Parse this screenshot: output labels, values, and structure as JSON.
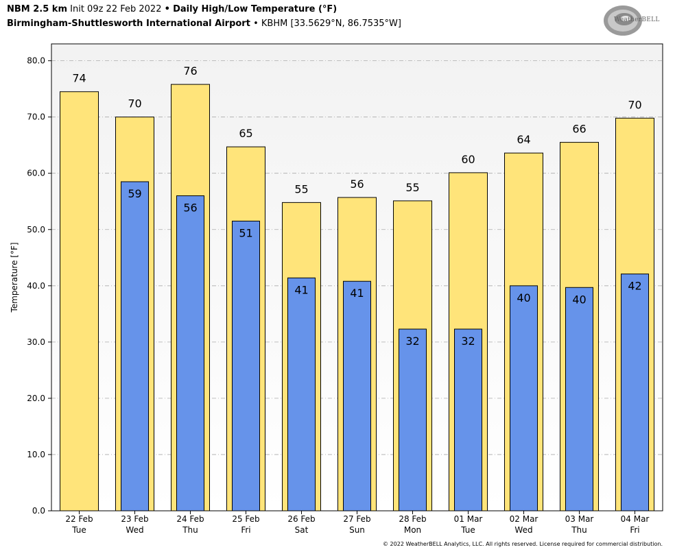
{
  "header": {
    "model": "NBM 2.5 km",
    "init": "Init 09z 22 Feb 2022",
    "sep": "•",
    "product": "Daily High/Low Temperature (°F)",
    "station_name": "Birmingham-Shuttlesworth International Airport",
    "station_info": "KBHM [33.5629°N, 86.7535°W]"
  },
  "logo": {
    "text": "WeatherBELL",
    "icon": "weatherbell-swirl-logo"
  },
  "copyright": "© 2022 WeatherBELL Analytics, LLC. All rights reserved. License required for commercial distribution.",
  "colors": {
    "high": "#FFE47A",
    "low": "#6693EA",
    "plot_bg_top": "#F2F2F2",
    "plot_bg_bottom": "#FFFFFF",
    "grid": "#AAAAAA"
  },
  "chart_data": {
    "type": "bar",
    "title": "Daily High/Low Temperature (°F)",
    "ylabel": "Temperature [°F]",
    "xlabel": "",
    "ylim": [
      0,
      83
    ],
    "yticks": [
      "0.0",
      "10.0",
      "20.0",
      "30.0",
      "40.0",
      "50.0",
      "60.0",
      "70.0",
      "80.0"
    ],
    "ytick_values": [
      0,
      10,
      20,
      30,
      40,
      50,
      60,
      70,
      80
    ],
    "grid": "horizontal dash-dot",
    "categories": [
      [
        "22 Feb",
        "Tue"
      ],
      [
        "23 Feb",
        "Wed"
      ],
      [
        "24 Feb",
        "Thu"
      ],
      [
        "25 Feb",
        "Fri"
      ],
      [
        "26 Feb",
        "Sat"
      ],
      [
        "27 Feb",
        "Sun"
      ],
      [
        "28 Feb",
        "Mon"
      ],
      [
        "01 Mar",
        "Tue"
      ],
      [
        "02 Mar",
        "Wed"
      ],
      [
        "03 Mar",
        "Thu"
      ],
      [
        "04 Mar",
        "Fri"
      ]
    ],
    "series": [
      {
        "values": [
          74.5,
          70,
          75.8,
          64.7,
          54.8,
          55.7,
          55.1,
          60.1,
          63.6,
          65.5,
          69.8
        ],
        "labels": [
          "74",
          "70",
          "76",
          "65",
          "55",
          "56",
          "55",
          "60",
          "64",
          "66",
          "70"
        ]
      },
      {
        "values": [
          null,
          58.5,
          56,
          51.5,
          41.4,
          40.8,
          32.3,
          32.3,
          40,
          39.7,
          42.1
        ],
        "labels": [
          "",
          "59",
          "56",
          "51",
          "41",
          "41",
          "32",
          "32",
          "40",
          "40",
          "42"
        ]
      }
    ]
  }
}
